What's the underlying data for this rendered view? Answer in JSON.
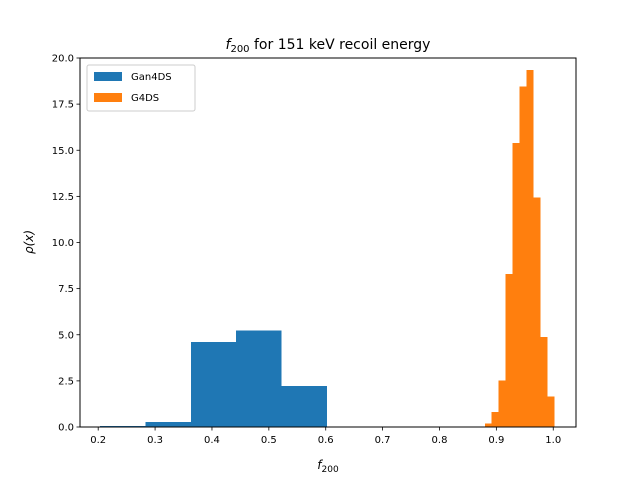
{
  "chart_data": {
    "type": "bar",
    "title": "151 keV recoil energy",
    "title_var": "f",
    "title_sub": "200",
    "title_suffix": " for ",
    "xlabel_var": "f",
    "xlabel_sub": "200",
    "ylabel": "ρ(x)",
    "xlim": [
      0.168,
      1.04
    ],
    "ylim": [
      0,
      20.0
    ],
    "xticks": [
      0.2,
      0.3,
      0.4,
      0.5,
      0.6,
      0.7,
      0.8,
      0.9,
      1.0
    ],
    "xtick_labels": [
      "0.2",
      "0.3",
      "0.4",
      "0.5",
      "0.6",
      "0.7",
      "0.8",
      "0.9",
      "1.0"
    ],
    "yticks": [
      0.0,
      2.5,
      5.0,
      7.5,
      10.0,
      12.5,
      15.0,
      17.5,
      20.0
    ],
    "ytick_labels": [
      "0.0",
      "2.5",
      "5.0",
      "7.5",
      "10.0",
      "12.5",
      "15.0",
      "17.5",
      "20.0"
    ],
    "legend_position": "top-left",
    "series": [
      {
        "name": "Gan4DS",
        "color": "#1f77b4",
        "bins": [
          {
            "x0": 0.2035,
            "x1": 0.2832,
            "y": 0.06
          },
          {
            "x0": 0.2832,
            "x1": 0.3629,
            "y": 0.28
          },
          {
            "x0": 0.3629,
            "x1": 0.4426,
            "y": 4.62
          },
          {
            "x0": 0.4426,
            "x1": 0.5223,
            "y": 5.22
          },
          {
            "x0": 0.5223,
            "x1": 0.602,
            "y": 2.22
          },
          {
            "x0": 0.602,
            "x1": 0.6817,
            "y": 0.04
          }
        ]
      },
      {
        "name": "G4DS",
        "color": "#ff7f0e",
        "bins": [
          {
            "x0": 0.8796,
            "x1": 0.8918,
            "y": 0.2
          },
          {
            "x0": 0.8918,
            "x1": 0.904,
            "y": 0.82
          },
          {
            "x0": 0.904,
            "x1": 0.9163,
            "y": 2.52
          },
          {
            "x0": 0.9163,
            "x1": 0.9285,
            "y": 8.3
          },
          {
            "x0": 0.9285,
            "x1": 0.9408,
            "y": 15.4
          },
          {
            "x0": 0.9408,
            "x1": 0.953,
            "y": 18.45
          },
          {
            "x0": 0.953,
            "x1": 0.9652,
            "y": 19.35
          },
          {
            "x0": 0.9652,
            "x1": 0.9775,
            "y": 12.45
          },
          {
            "x0": 0.9775,
            "x1": 0.9897,
            "y": 4.88
          },
          {
            "x0": 0.9897,
            "x1": 1.002,
            "y": 1.65
          }
        ]
      }
    ]
  }
}
